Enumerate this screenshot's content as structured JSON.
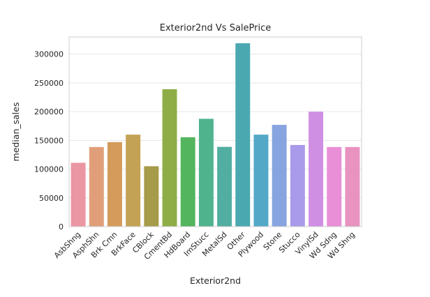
{
  "chart_data": {
    "type": "bar",
    "title": "Exterior2nd Vs SalePrice",
    "xlabel": "Exterior2nd",
    "ylabel": "median_sales",
    "ylim": [
      0,
      330000
    ],
    "yticks": [
      0,
      50000,
      100000,
      150000,
      200000,
      250000,
      300000
    ],
    "ytick_labels": [
      "0",
      "50000",
      "100000",
      "150000",
      "200000",
      "250000",
      "300000"
    ],
    "grid": true,
    "categories": [
      "AsbShng",
      "AsphShn",
      "Brk Cmn",
      "BrkFace",
      "CBlock",
      "CmentBd",
      "HdBoard",
      "ImStucc",
      "MetalSd",
      "Other",
      "Plywood",
      "Stone",
      "Stucco",
      "VinylSd",
      "Wd Sdng",
      "Wd Shng"
    ],
    "values": [
      111000,
      138500,
      147000,
      160000,
      105000,
      239000,
      155500,
      187600,
      138750,
      319000,
      160000,
      177000,
      142000,
      200000,
      138500,
      138500
    ],
    "colors": [
      "#ea96a3",
      "#e09f7a",
      "#d49b5b",
      "#c3a255",
      "#a59b49",
      "#8fad47",
      "#53b55e",
      "#4fb38d",
      "#51aea0",
      "#4aa8b0",
      "#53a8c8",
      "#88a4e0",
      "#aa9aea",
      "#cf8fe3",
      "#e88fd7",
      "#e893c0"
    ]
  }
}
